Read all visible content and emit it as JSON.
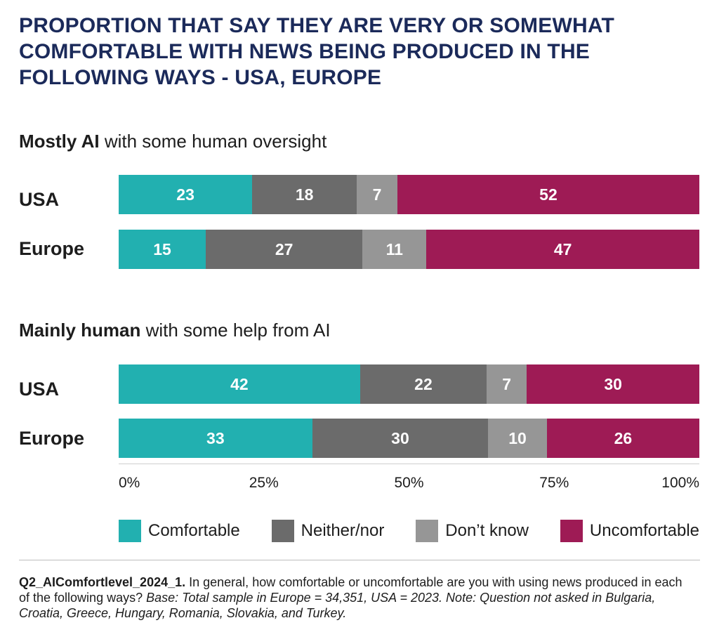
{
  "title": "PROPORTION THAT SAY THEY ARE VERY OR SOMEWHAT COMFORTABLE WITH NEWS BEING PRODUCED IN THE FOLLOWING WAYS - USA, EUROPE",
  "chart_data": {
    "type": "bar",
    "orientation": "horizontal",
    "stacked": true,
    "title": "PROPORTION THAT SAY THEY ARE VERY OR SOMEWHAT COMFORTABLE WITH NEWS BEING PRODUCED IN THE FOLLOWING WAYS - USA, EUROPE",
    "xlim": [
      0,
      100
    ],
    "x_ticks": [
      "0%",
      "25%",
      "50%",
      "75%",
      "100%"
    ],
    "legend_position": "bottom",
    "series_names": [
      "Comfortable",
      "Neither/nor",
      "Don't know",
      "Uncomfortable"
    ],
    "colors": [
      "#22b0b0",
      "#6b6b6b",
      "#969696",
      "#9e1b55"
    ],
    "panels": [
      {
        "subtitle_bold": "Mostly AI",
        "subtitle_rest": " with some human oversight",
        "categories": [
          "USA",
          "Europe"
        ],
        "values": [
          [
            23,
            18,
            7,
            52
          ],
          [
            15,
            27,
            11,
            47
          ]
        ]
      },
      {
        "subtitle_bold": "Mainly human",
        "subtitle_rest": " with some help from AI",
        "categories": [
          "USA",
          "Europe"
        ],
        "values": [
          [
            42,
            22,
            7,
            30
          ],
          [
            33,
            30,
            10,
            26
          ]
        ]
      }
    ]
  },
  "footnote": {
    "bold": "Q2_AIComfortlevel_2024_1.",
    "text": " In general, how comfortable or uncomfortable are you with using news produced in each of the following ways? ",
    "italic": "Base: Total sample in Europe = 34,351, USA = 2023. Note: Question not asked in Bulgaria, Croatia, Greece, Hungary, Romania, Slovakia, and Turkey."
  }
}
